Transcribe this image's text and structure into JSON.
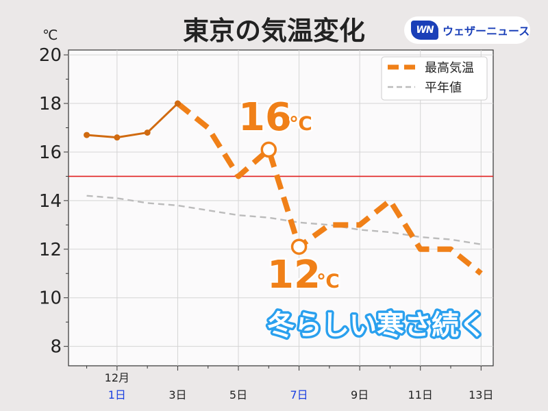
{
  "logo": {
    "mark": "WN",
    "text": "ウェザーニュース"
  },
  "chart_data": {
    "type": "line",
    "title": "東京の気温変化",
    "y_unit": "℃",
    "ylim": [
      7.2,
      20.2
    ],
    "y_ticks": [
      8,
      10,
      12,
      14,
      16,
      18,
      20
    ],
    "month_label": "12月",
    "x_tick_labels": [
      {
        "day": 1,
        "label": "1日",
        "color": "#1a3fe0"
      },
      {
        "day": 3,
        "label": "3日",
        "color": "#222222"
      },
      {
        "day": 5,
        "label": "5日",
        "color": "#222222"
      },
      {
        "day": 7,
        "label": "7日",
        "color": "#1a3fe0"
      },
      {
        "day": 9,
        "label": "9日",
        "color": "#222222"
      },
      {
        "day": 11,
        "label": "11日",
        "color": "#222222"
      },
      {
        "day": 13,
        "label": "13日",
        "color": "#222222"
      }
    ],
    "x_range": [
      -0.6,
      13.4
    ],
    "reference_line": {
      "value": 15,
      "color": "#e02020"
    },
    "series": [
      {
        "name": "最高気温",
        "color": "#f08018",
        "observed_color": "#d06a10",
        "observed_until_day": 3,
        "days": [
          0,
          1,
          2,
          3,
          4,
          5,
          6,
          7,
          8,
          9,
          10,
          11,
          12,
          13
        ],
        "values": [
          16.7,
          16.6,
          16.8,
          18.0,
          17.0,
          15.0,
          16.1,
          12.1,
          13.0,
          13.0,
          14.0,
          12.0,
          12.0,
          11.0
        ]
      },
      {
        "name": "平年値",
        "color": "#bbbbbb",
        "days": [
          0,
          1,
          2,
          3,
          4,
          5,
          6,
          7,
          8,
          9,
          10,
          11,
          12,
          13
        ],
        "values": [
          14.2,
          14.1,
          13.9,
          13.8,
          13.6,
          13.4,
          13.3,
          13.1,
          13.0,
          12.8,
          12.7,
          12.5,
          12.4,
          12.2
        ]
      }
    ],
    "annotations": [
      {
        "day": 6,
        "value": 16.1,
        "number": "16",
        "unit": "℃"
      },
      {
        "day": 7,
        "value": 12.1,
        "number": "12",
        "unit": "℃"
      }
    ],
    "caption": "冬らしい寒さ続く",
    "legend_position": "top-right",
    "grid": true
  }
}
